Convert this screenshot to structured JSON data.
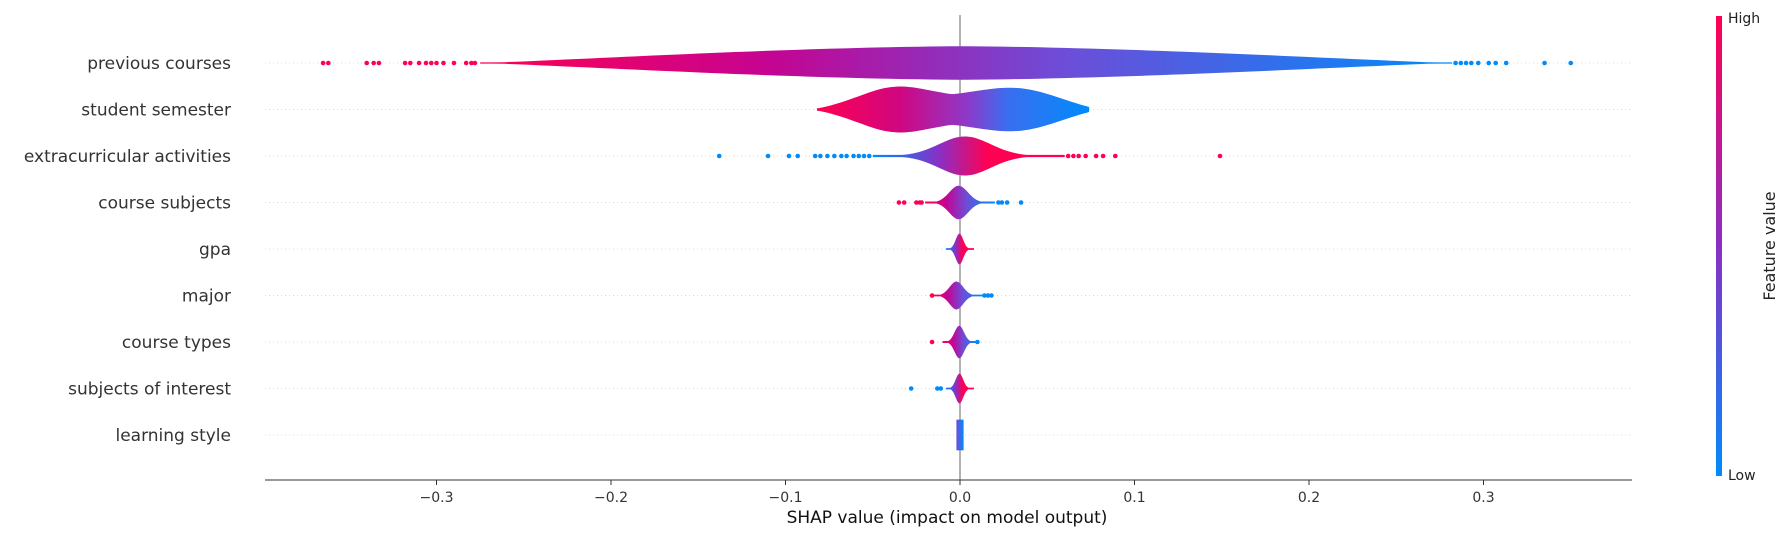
{
  "chart_data": {
    "type": "violin",
    "title": "",
    "xlabel": "SHAP value (impact on model output)",
    "ylabel": "",
    "xlim": [
      -0.4,
      0.39
    ],
    "xticks": [
      -0.3,
      -0.2,
      -0.1,
      0.0,
      0.1,
      0.2,
      0.3
    ],
    "xtick_labels": [
      "−0.3",
      "−0.2",
      "−0.1",
      "0.0",
      "0.1",
      "0.2",
      "0.3"
    ],
    "colors": {
      "low": "#008bfb",
      "high": "#ff0052",
      "zero_line": "#999999"
    },
    "colorbar": {
      "title": "Feature value",
      "high_label": "High",
      "low_label": "Low"
    },
    "features": [
      {
        "name": "previous courses",
        "min": -0.275,
        "max": 0.282,
        "halfwidth": 0.36,
        "shape": "wide",
        "color_dir": "neg_high",
        "outliers_high": [
          -0.365,
          -0.362,
          -0.34,
          -0.336,
          -0.333,
          -0.318,
          -0.315,
          -0.31,
          -0.306,
          -0.303,
          -0.3,
          -0.296,
          -0.29,
          -0.283,
          -0.28,
          -0.278
        ],
        "outliers_low": [
          0.284,
          0.287,
          0.29,
          0.293,
          0.297,
          0.303,
          0.307,
          0.313,
          0.335,
          0.35
        ]
      },
      {
        "name": "student semester",
        "min": -0.082,
        "max": 0.074,
        "halfwidth": 0.5,
        "shape": "semester",
        "color_dir": "neg_high",
        "outliers_high": [],
        "outliers_low": []
      },
      {
        "name": "extracurricular activities",
        "min": -0.05,
        "max": 0.06,
        "halfwidth": 0.42,
        "shape": "peak",
        "color_dir": "pos_high",
        "outliers_high": [
          0.062,
          0.065,
          0.068,
          0.072,
          0.078,
          0.082,
          0.089,
          0.149
        ],
        "outliers_low": [
          -0.138,
          -0.11,
          -0.098,
          -0.093,
          -0.083,
          -0.08,
          -0.076,
          -0.072,
          -0.068,
          -0.065,
          -0.061,
          -0.058,
          -0.055,
          -0.052
        ]
      },
      {
        "name": "course subjects",
        "min": -0.02,
        "max": 0.02,
        "halfwidth": 0.36,
        "shape": "peak",
        "color_dir": "neg_high",
        "outliers_high": [
          -0.035,
          -0.032,
          -0.025,
          -0.023,
          -0.022
        ],
        "outliers_low": [
          0.022,
          0.024,
          0.027,
          0.035
        ]
      },
      {
        "name": "gpa",
        "min": -0.008,
        "max": 0.008,
        "halfwidth": 0.33,
        "shape": "peak",
        "color_dir": "pos_high",
        "outliers_high": [],
        "outliers_low": []
      },
      {
        "name": "major",
        "min": -0.016,
        "max": 0.013,
        "halfwidth": 0.3,
        "shape": "peak",
        "color_dir": "neg_high",
        "outliers_high": [
          -0.016
        ],
        "outliers_low": [
          0.014,
          0.016,
          0.018
        ]
      },
      {
        "name": "course types",
        "min": -0.01,
        "max": 0.01,
        "halfwidth": 0.35,
        "shape": "peak",
        "color_dir": "neg_high",
        "outliers_high": [
          -0.016
        ],
        "outliers_low": [
          0.01
        ]
      },
      {
        "name": "subjects of interest",
        "min": -0.008,
        "max": 0.008,
        "halfwidth": 0.32,
        "shape": "peak",
        "color_dir": "pos_high",
        "outliers_high": [],
        "outliers_low": [
          -0.028,
          -0.013,
          -0.011
        ]
      },
      {
        "name": "learning style",
        "min": -0.0012,
        "max": 0.0012,
        "halfwidth": 0.33,
        "shape": "flat",
        "color_dir": "mixed",
        "outliers_high": [],
        "outliers_low": []
      }
    ]
  }
}
